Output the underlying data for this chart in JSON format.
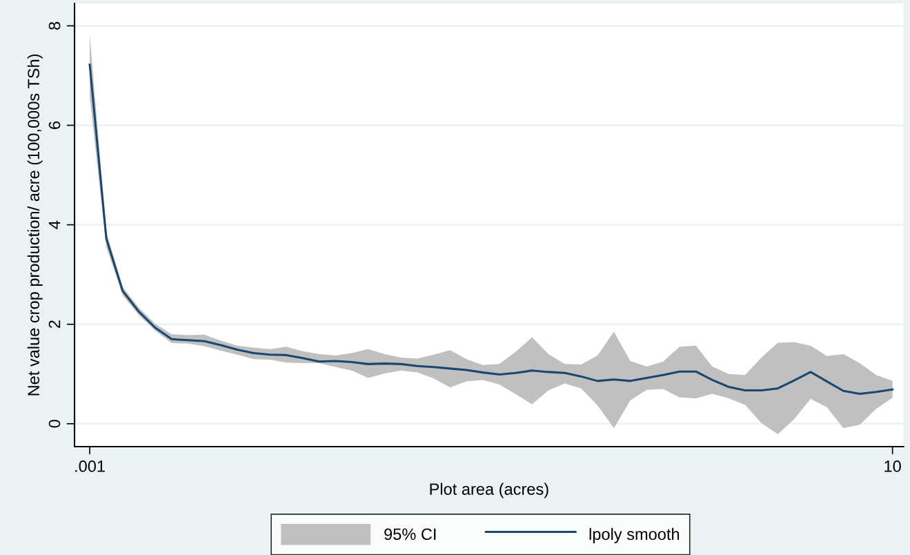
{
  "chart_data": {
    "type": "line",
    "xlabel": "Plot area (acres)",
    "ylabel": "Net value crop production/ acre (100,000s TSh)",
    "annotations": [
      "95% CI"
    ],
    "x": [
      0.001,
      0.00121,
      0.00146,
      0.00176,
      0.00212,
      0.00256,
      0.00309,
      0.00373,
      0.0045,
      0.00543,
      0.00655,
      0.00791,
      0.00954,
      0.0115,
      0.0139,
      0.0168,
      0.0202,
      0.0244,
      0.0295,
      0.0356,
      0.0429,
      0.0518,
      0.0625,
      0.0754,
      0.091,
      0.11,
      0.133,
      0.16,
      0.193,
      0.233,
      0.281,
      0.339,
      0.409,
      0.494,
      0.596,
      0.72,
      0.869,
      1.048,
      1.265,
      1.527,
      1.842,
      2.223,
      2.683,
      3.238,
      3.907,
      4.715,
      5.69,
      6.867,
      8.287,
      10
    ],
    "series": [
      {
        "name": "lpoly smooth",
        "color": "#1a476f",
        "values": [
          7.22,
          3.72,
          2.67,
          2.25,
          1.93,
          1.7,
          1.68,
          1.66,
          1.58,
          1.49,
          1.42,
          1.39,
          1.38,
          1.32,
          1.25,
          1.26,
          1.24,
          1.2,
          1.21,
          1.2,
          1.16,
          1.14,
          1.11,
          1.08,
          1.03,
          0.99,
          1.02,
          1.07,
          1.04,
          1.02,
          0.95,
          0.86,
          0.89,
          0.86,
          0.92,
          0.98,
          1.05,
          1.05,
          0.88,
          0.74,
          0.67,
          0.67,
          0.71,
          0.87,
          1.04,
          0.85,
          0.66,
          0.6,
          0.64,
          0.69
        ],
        "lower": [
          6.58,
          3.55,
          2.58,
          2.18,
          1.87,
          1.62,
          1.61,
          1.56,
          1.47,
          1.39,
          1.3,
          1.29,
          1.23,
          1.22,
          1.22,
          1.14,
          1.07,
          0.92,
          1.01,
          1.07,
          1.03,
          0.91,
          0.73,
          0.85,
          0.88,
          0.79,
          0.59,
          0.39,
          0.67,
          0.81,
          0.71,
          0.37,
          -0.09,
          0.47,
          0.68,
          0.7,
          0.53,
          0.51,
          0.6,
          0.51,
          0.38,
          0.01,
          -0.21,
          0.09,
          0.5,
          0.33,
          -0.09,
          -0.02,
          0.3,
          0.52
        ],
        "upper": [
          7.83,
          3.86,
          2.75,
          2.33,
          2.01,
          1.8,
          1.78,
          1.79,
          1.67,
          1.57,
          1.53,
          1.5,
          1.55,
          1.46,
          1.4,
          1.37,
          1.42,
          1.5,
          1.4,
          1.33,
          1.31,
          1.39,
          1.48,
          1.3,
          1.18,
          1.2,
          1.45,
          1.74,
          1.4,
          1.2,
          1.19,
          1.37,
          1.85,
          1.26,
          1.15,
          1.25,
          1.55,
          1.57,
          1.15,
          1.0,
          0.98,
          1.33,
          1.63,
          1.64,
          1.57,
          1.36,
          1.4,
          1.22,
          0.98,
          0.86
        ]
      }
    ],
    "log": "x",
    "xlim": [
      0.00084,
      11.35
    ],
    "xticks": [
      {
        "value": 0.001,
        "label": ".001"
      },
      10
    ],
    "ylim": [
      -0.46,
      8.45
    ],
    "yticks": [
      0,
      2,
      4,
      6,
      8
    ],
    "grid": "y",
    "legend": "bottom",
    "line_style": "solid",
    "marker": "none"
  }
}
